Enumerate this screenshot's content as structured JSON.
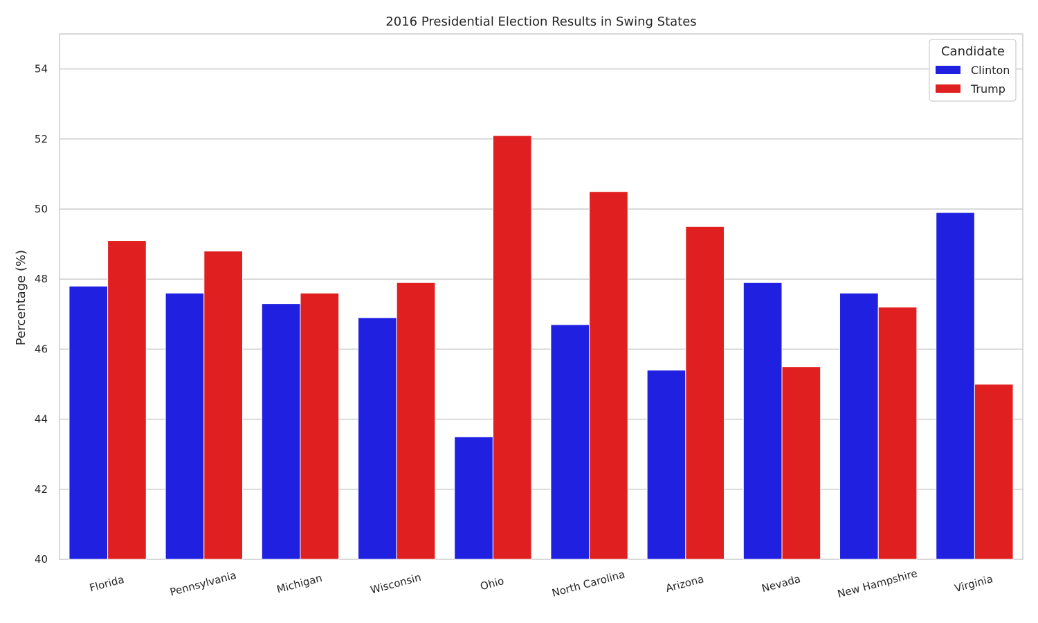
{
  "chart_data": {
    "type": "bar",
    "title": "2016 Presidential Election Results in Swing States",
    "xlabel": "",
    "ylabel": "Percentage (%)",
    "ylim": [
      40,
      55
    ],
    "yticks": [
      40,
      42,
      44,
      46,
      48,
      50,
      52,
      54
    ],
    "grid": "horizontal",
    "legend": {
      "title": "Candidate",
      "placement": "top-right"
    },
    "categories": [
      "Florida",
      "Pennsylvania",
      "Michigan",
      "Wisconsin",
      "Ohio",
      "North Carolina",
      "Arizona",
      "Nevada",
      "New Hampshire",
      "Virginia"
    ],
    "series": [
      {
        "name": "Clinton",
        "color": "#2020e0",
        "values": [
          47.8,
          47.6,
          47.3,
          46.9,
          43.5,
          46.7,
          45.4,
          47.9,
          47.6,
          49.9
        ]
      },
      {
        "name": "Trump",
        "color": "#e02020",
        "values": [
          49.1,
          48.8,
          47.6,
          47.9,
          52.1,
          50.5,
          49.5,
          45.5,
          47.2,
          45.0
        ]
      }
    ]
  }
}
